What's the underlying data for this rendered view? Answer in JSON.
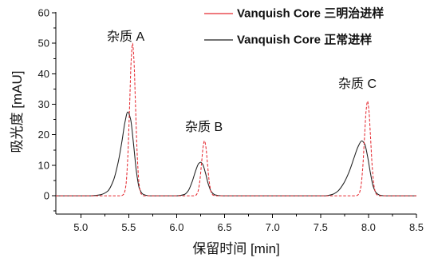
{
  "chart_data": {
    "type": "line",
    "xlabel": "保留时间 [min]",
    "ylabel": "吸光度 [mAU]",
    "xlim": [
      4.74,
      8.5
    ],
    "ylim": [
      -6,
      60
    ],
    "x_ticks": [
      "5.0",
      "5.5",
      "6.0",
      "6.5",
      "7.0",
      "7.5",
      "8.0",
      "8.5"
    ],
    "y_ticks": [
      "0",
      "10",
      "20",
      "30",
      "40",
      "50",
      "60"
    ],
    "minor_ticks": {
      "x_step": 0.25,
      "y_step": 5
    },
    "grid": false,
    "legend": {
      "placement": "top-right"
    },
    "annotations": [
      "杂质 A",
      "杂质 B",
      "杂质 C"
    ],
    "series": [
      {
        "name": "Vanquish Core 三明治进样",
        "color": "#e52b32",
        "line_style": "dashed",
        "x": [
          4.74,
          5.42,
          5.45,
          5.47,
          5.49,
          5.51,
          5.525,
          5.54,
          5.555,
          5.57,
          5.59,
          5.61,
          5.63,
          5.66,
          6.17,
          6.2,
          6.22,
          6.24,
          6.26,
          6.275,
          6.29,
          6.305,
          6.32,
          6.34,
          6.36,
          6.38,
          6.41,
          7.87,
          7.9,
          7.92,
          7.94,
          7.96,
          7.975,
          7.99,
          8.005,
          8.02,
          8.04,
          8.06,
          8.08,
          8.11,
          8.5
        ],
        "y": [
          0,
          0,
          0.6,
          3.3,
          12.5,
          30.3,
          44.1,
          50,
          44.1,
          30.3,
          12.5,
          3.3,
          0.6,
          0,
          0,
          0.2,
          1.2,
          4.5,
          10.9,
          15.9,
          18,
          15.9,
          10.9,
          4.5,
          1.2,
          0.2,
          0,
          0,
          0.6,
          2.8,
          9.1,
          20,
          27.8,
          31,
          27.8,
          20,
          9.1,
          2.8,
          0.6,
          0,
          0
        ]
      },
      {
        "name": "Vanquish Core 正常进样",
        "color": "#1f1f1f",
        "line_style": "solid",
        "x": [
          4.74,
          5.1,
          5.2,
          5.28,
          5.34,
          5.39,
          5.43,
          5.46,
          5.49,
          5.52,
          5.55,
          5.58,
          5.61,
          5.65,
          5.72,
          6.0,
          6.08,
          6.12,
          6.16,
          6.2,
          6.23,
          6.25,
          6.27,
          6.3,
          6.33,
          6.36,
          6.4,
          6.48,
          7.55,
          7.62,
          7.68,
          7.74,
          7.8,
          7.85,
          7.89,
          7.93,
          7.96,
          7.99,
          8.02,
          8.05,
          8.08,
          8.12,
          8.18,
          8.5
        ],
        "y": [
          0,
          0,
          0.3,
          1.5,
          5,
          11,
          18,
          24,
          27.5,
          25,
          17,
          8,
          2.5,
          0.5,
          0,
          0,
          0.4,
          1.6,
          4.5,
          8.4,
          10.6,
          11,
          10.4,
          7.5,
          3.8,
          1.4,
          0.3,
          0,
          0,
          0.4,
          1.5,
          4,
          8,
          12.5,
          16,
          18,
          17,
          13,
          7.5,
          3,
          1,
          0.2,
          0,
          0
        ]
      }
    ]
  }
}
